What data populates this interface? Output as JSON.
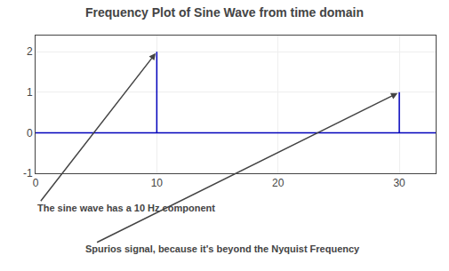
{
  "chart_data": {
    "type": "stem",
    "title": "Frequency Plot of Sine Wave from time domain",
    "x": [
      10,
      30
    ],
    "values": [
      2,
      1
    ],
    "color": "#0000bb",
    "xlim": [
      0,
      33
    ],
    "ylim": [
      -1,
      2.4
    ],
    "xticks": [
      0,
      10,
      20,
      30
    ],
    "yticks": [
      -1,
      0,
      1,
      2
    ],
    "grid": true,
    "annotations": [
      {
        "text": "The sine wave has a 10 Hz component",
        "x": 10
      },
      {
        "text": "Spurios signal, because it's beyond the Nyquist Frequency",
        "x": 30
      }
    ]
  }
}
